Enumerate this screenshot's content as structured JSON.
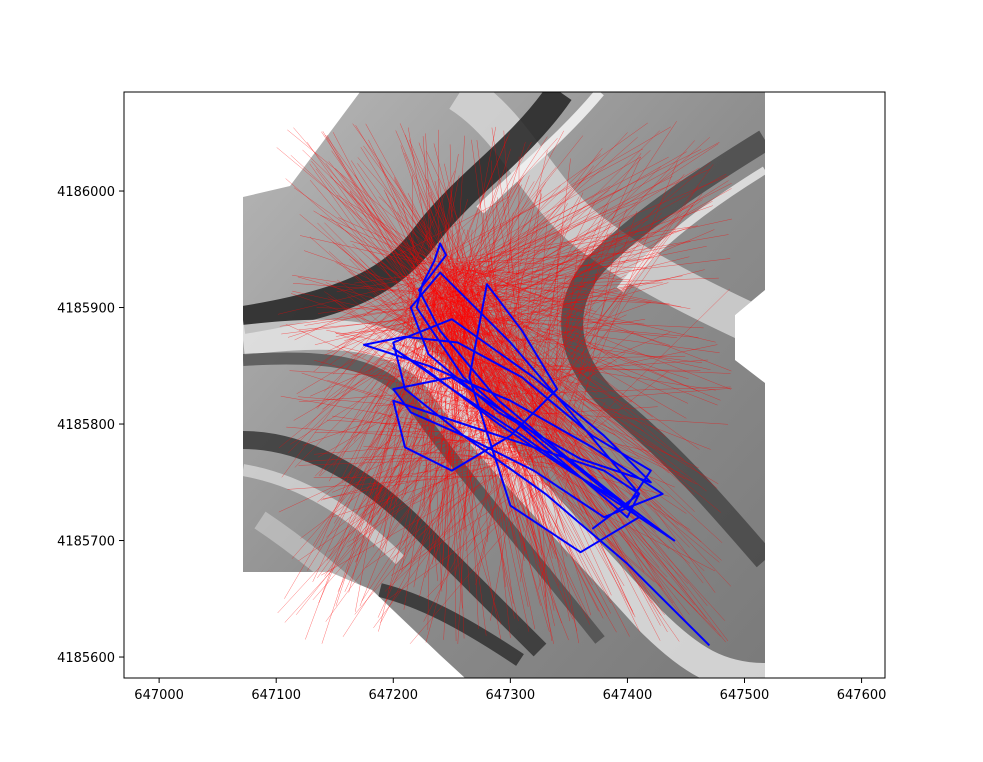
{
  "chart_data": {
    "type": "scatter",
    "title": "",
    "xlabel": "",
    "ylabel": "",
    "xlim": [
      646970,
      647620
    ],
    "ylim": [
      4185582,
      4186085
    ],
    "x_ticks": [
      "647000",
      "647100",
      "647200",
      "647300",
      "647400",
      "647500",
      "647600"
    ],
    "x_tick_values": [
      647000,
      647100,
      647200,
      647300,
      647400,
      647500,
      647600
    ],
    "y_ticks": [
      "4185600",
      "4185700",
      "4185800",
      "4185900",
      "4186000"
    ],
    "y_tick_values": [
      4185600,
      4185700,
      4185800,
      4185900,
      4186000
    ],
    "grid": false,
    "legend": "none",
    "background": {
      "kind": "grayscale hillshade raster",
      "extent_x": [
        647072,
        647515
      ],
      "extent_y": [
        4185582,
        4186085
      ]
    },
    "series": [
      {
        "style": "thin red rays",
        "color": "#ff0000",
        "ray_count": 900,
        "origins_x": [
          647230,
          647330
        ],
        "origins_y": [
          4185760,
          4185930
        ],
        "reach_x": [
          647100,
          647490
        ],
        "reach_y": [
          4185610,
          4186060
        ]
      },
      {
        "style": "blue track line",
        "color": "#0000ff",
        "x": [
          647470,
          647400,
          647330,
          647260,
          647210,
          647200,
          647250,
          647320,
          647380,
          647420,
          647360,
          647290,
          647230,
          647215,
          647240,
          647300,
          647360,
          647410,
          647400,
          647330,
          647260,
          647220,
          647225,
          647235,
          647240,
          647245,
          647230,
          647222,
          647240,
          647290,
          647350,
          647400,
          647440,
          647380,
          647310,
          647250,
          647200,
          647230,
          647290,
          647350,
          647400,
          647420,
          647370,
          647310,
          647255,
          647210,
          647175,
          647230,
          647300,
          647370,
          647430,
          647380,
          647320,
          647260,
          647215,
          647200,
          647250,
          647310,
          647360,
          647410,
          647360,
          647300,
          647265,
          647280,
          647310,
          647340,
          647300,
          647250,
          647210,
          647200,
          647260,
          647320,
          647380,
          647410,
          647370
        ],
        "y": [
          4185610,
          4185680,
          4185740,
          4185790,
          4185830,
          4185870,
          4185890,
          4185840,
          4185790,
          4185750,
          4185770,
          4185810,
          4185860,
          4185900,
          4185930,
          4185870,
          4185800,
          4185740,
          4185720,
          4185780,
          4185840,
          4185900,
          4185920,
          4185940,
          4185955,
          4185945,
          4185925,
          4185915,
          4185880,
          4185820,
          4185770,
          4185730,
          4185700,
          4185740,
          4185790,
          4185830,
          4185865,
          4185845,
          4185800,
          4185760,
          4185730,
          4185760,
          4185790,
          4185840,
          4185870,
          4185875,
          4185868,
          4185850,
          4185820,
          4185780,
          4185740,
          4185720,
          4185760,
          4185790,
          4185810,
          4185830,
          4185840,
          4185800,
          4185760,
          4185720,
          4185690,
          4185730,
          4185840,
          4185920,
          4185880,
          4185830,
          4185790,
          4185760,
          4185780,
          4185820,
          4185800,
          4185780,
          4185760,
          4185740,
          4185710
        ]
      }
    ]
  }
}
